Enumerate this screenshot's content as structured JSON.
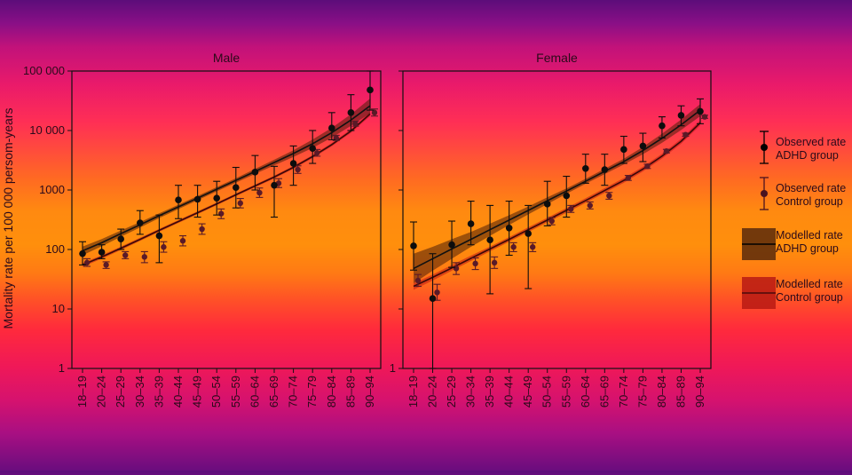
{
  "chart_data": {
    "type": "line",
    "ylabel": "Mortality rate per 100 000 persom-years",
    "y_scale": "log",
    "ylim": [
      1,
      100000
    ],
    "y_ticks": [
      1,
      10,
      100,
      1000,
      10000,
      100000
    ],
    "y_tick_labels": [
      "1",
      "10",
      "100",
      "1000",
      "10 000",
      "100 000"
    ],
    "categories": [
      "18–19",
      "20–24",
      "25–29",
      "30–34",
      "35–39",
      "40–44",
      "45–49",
      "50–54",
      "55–59",
      "60–64",
      "65–69",
      "70–74",
      "75–79",
      "80–84",
      "85–89",
      "90–94"
    ],
    "panels": [
      {
        "title": "Male",
        "show_y_ticks": true,
        "observed_adhd": [
          {
            "y": 85,
            "lo": 55,
            "hi": 135
          },
          {
            "y": 90,
            "lo": 70,
            "hi": 120
          },
          {
            "y": 150,
            "lo": 100,
            "hi": 220
          },
          {
            "y": 280,
            "lo": 180,
            "hi": 450
          },
          {
            "y": 170,
            "lo": 60,
            "hi": 380
          },
          {
            "y": 680,
            "lo": 330,
            "hi": 1200
          },
          {
            "y": 700,
            "lo": 350,
            "hi": 1200
          },
          {
            "y": 730,
            "lo": 380,
            "hi": 1400
          },
          {
            "y": 1100,
            "lo": 500,
            "hi": 2400
          },
          {
            "y": 2000,
            "lo": 1000,
            "hi": 3800
          },
          {
            "y": 1200,
            "lo": 350,
            "hi": 2500
          },
          {
            "y": 2800,
            "lo": 1200,
            "hi": 5500
          },
          {
            "y": 5000,
            "lo": 2800,
            "hi": 10000
          },
          {
            "y": 11000,
            "lo": 7000,
            "hi": 20000
          },
          {
            "y": 20000,
            "lo": 10000,
            "hi": 40000
          },
          {
            "y": 48000,
            "lo": 22000,
            "hi": 100000
          }
        ],
        "observed_control": [
          {
            "y": 60,
            "lo": 52,
            "hi": 70
          },
          {
            "y": 55,
            "lo": 48,
            "hi": 62
          },
          {
            "y": 80,
            "lo": 70,
            "hi": 92
          },
          {
            "y": 75,
            "lo": 60,
            "hi": 92
          },
          {
            "y": 110,
            "lo": 90,
            "hi": 135
          },
          {
            "y": 140,
            "lo": 115,
            "hi": 170
          },
          {
            "y": 220,
            "lo": 180,
            "hi": 270
          },
          {
            "y": 400,
            "lo": 330,
            "hi": 480
          },
          {
            "y": 600,
            "lo": 500,
            "hi": 720
          },
          {
            "y": 900,
            "lo": 750,
            "hi": 1080
          },
          {
            "y": 1300,
            "lo": 1100,
            "hi": 1550
          },
          {
            "y": 2200,
            "lo": 1900,
            "hi": 2550
          },
          {
            "y": 4200,
            "lo": 3700,
            "hi": 4800
          },
          {
            "y": 7500,
            "lo": 6800,
            "hi": 8300
          },
          {
            "y": 13000,
            "lo": 11800,
            "hi": 14300
          },
          {
            "y": 20000,
            "lo": 17500,
            "hi": 23000
          }
        ],
        "modelled_adhd": {
          "values": [
            95,
            130,
            185,
            260,
            370,
            520,
            730,
            1030,
            1450,
            2050,
            2900,
            4100,
            6000,
            9200,
            15000,
            26000
          ],
          "lo": [
            80,
            113,
            164,
            234,
            337,
            478,
            673,
            950,
            1330,
            1860,
            2600,
            3600,
            5100,
            7600,
            12000,
            19500
          ],
          "hi": [
            112,
            150,
            209,
            289,
            406,
            566,
            792,
            1117,
            1580,
            2260,
            3230,
            4670,
            7060,
            11100,
            18700,
            34500
          ]
        },
        "modelled_control": {
          "values": [
            55,
            75,
            105,
            148,
            210,
            295,
            415,
            585,
            830,
            1170,
            1650,
            2400,
            3650,
            5800,
            9800,
            19000
          ],
          "lo": [
            51,
            70,
            98,
            139,
            198,
            279,
            393,
            555,
            789,
            1110,
            1565,
            2270,
            3440,
            5450,
            9150,
            17500
          ],
          "hi": [
            59,
            80,
            112,
            158,
            223,
            312,
            438,
            616,
            873,
            1233,
            1740,
            2540,
            3870,
            6170,
            10500,
            20600
          ]
        }
      },
      {
        "title": "Female",
        "show_y_ticks": false,
        "observed_adhd": [
          {
            "y": 115,
            "lo": 45,
            "hi": 290
          },
          {
            "y": 15,
            "lo": 1,
            "hi": 85
          },
          {
            "y": 120,
            "lo": 50,
            "hi": 300
          },
          {
            "y": 270,
            "lo": 120,
            "hi": 650
          },
          {
            "y": 145,
            "lo": 18,
            "hi": 550
          },
          {
            "y": 230,
            "lo": 80,
            "hi": 650
          },
          {
            "y": 185,
            "lo": 22,
            "hi": 550
          },
          {
            "y": 580,
            "lo": 250,
            "hi": 1400
          },
          {
            "y": 800,
            "lo": 350,
            "hi": 1700
          },
          {
            "y": 2300,
            "lo": 1300,
            "hi": 4000
          },
          {
            "y": 2200,
            "lo": 1200,
            "hi": 4000
          },
          {
            "y": 4800,
            "lo": 2800,
            "hi": 8000
          },
          {
            "y": 5500,
            "lo": 3000,
            "hi": 9000
          },
          {
            "y": 12000,
            "lo": 7500,
            "hi": 17000
          },
          {
            "y": 18000,
            "lo": 12000,
            "hi": 26000
          },
          {
            "y": 21000,
            "lo": 13000,
            "hi": 34000
          }
        ],
        "observed_control": [
          {
            "y": 30,
            "lo": 24,
            "hi": 38
          },
          {
            "y": 19,
            "lo": 14,
            "hi": 26
          },
          {
            "y": 48,
            "lo": 38,
            "hi": 60
          },
          {
            "y": 58,
            "lo": 46,
            "hi": 72
          },
          {
            "y": 60,
            "lo": 48,
            "hi": 75
          },
          {
            "y": 110,
            "lo": 92,
            "hi": 130
          },
          {
            "y": 110,
            "lo": 92,
            "hi": 130
          },
          {
            "y": 300,
            "lo": 260,
            "hi": 345
          },
          {
            "y": 480,
            "lo": 420,
            "hi": 550
          },
          {
            "y": 550,
            "lo": 480,
            "hi": 630
          },
          {
            "y": 800,
            "lo": 700,
            "hi": 910
          },
          {
            "y": 1600,
            "lo": 1450,
            "hi": 1760
          },
          {
            "y": 2500,
            "lo": 2300,
            "hi": 2720
          },
          {
            "y": 4500,
            "lo": 4200,
            "hi": 4820
          },
          {
            "y": 8500,
            "lo": 8000,
            "hi": 9030
          },
          {
            "y": 17000,
            "lo": 16000,
            "hi": 18100
          }
        ],
        "modelled_adhd": {
          "values": [
            48,
            70,
            102,
            148,
            215,
            312,
            453,
            660,
            960,
            1400,
            2050,
            3000,
            4600,
            7400,
            12500,
            22000
          ],
          "lo": [
            27,
            44,
            70,
            111,
            170,
            258,
            389,
            579,
            866,
            1270,
            1850,
            2680,
            4000,
            6200,
            10200,
            17400
          ],
          "hi": [
            85,
            111,
            149,
            197,
            272,
            377,
            528,
            752,
            1064,
            1543,
            2270,
            3360,
            5290,
            8830,
            15300,
            27800
          ]
        },
        "modelled_control": {
          "values": [
            24,
            34,
            49,
            71,
            102,
            148,
            215,
            312,
            455,
            665,
            980,
            1450,
            2250,
            3700,
            6600,
            13500
          ],
          "lo": [
            21,
            30,
            44,
            64,
            93,
            135,
            196,
            285,
            415,
            607,
            894,
            1320,
            2050,
            3380,
            6000,
            12200
          ],
          "hi": [
            27,
            38,
            55,
            79,
            112,
            162,
            236,
            342,
            499,
            729,
            1074,
            1590,
            2470,
            4050,
            7260,
            14900
          ]
        }
      }
    ],
    "legend": [
      {
        "kind": "observed",
        "line1": "Observed rate",
        "line2": "ADHD group",
        "color": "#000000"
      },
      {
        "kind": "observed",
        "line1": "Observed rate",
        "line2": "Control group",
        "color": "#4a1320"
      },
      {
        "kind": "modelled",
        "line1": "Modelled rate",
        "line2": "ADHD group",
        "color": "#000000",
        "band": "#5a2a0c"
      },
      {
        "kind": "modelled",
        "line1": "Modelled rate",
        "line2": "Control group",
        "color": "#4a0a0a",
        "band": "#b81a14"
      }
    ]
  }
}
